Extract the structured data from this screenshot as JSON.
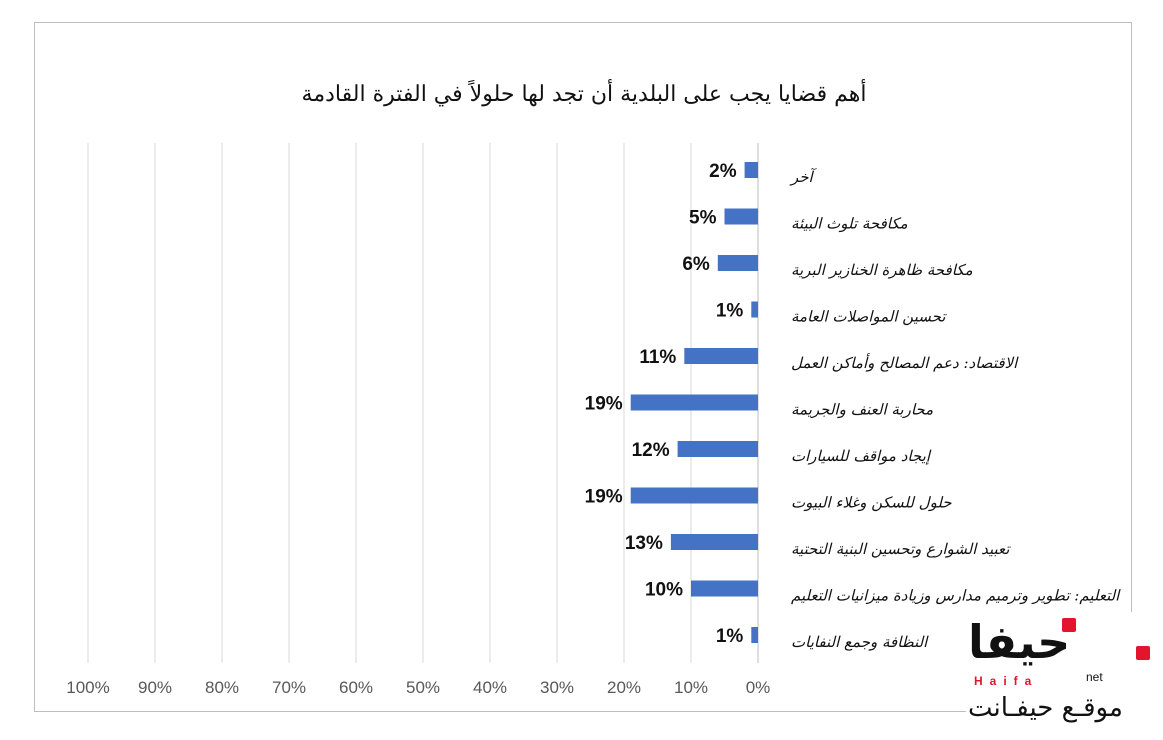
{
  "chart_data": {
    "type": "bar",
    "orientation": "horizontal",
    "title": "أهم قضايا يجب على البلدية أن تجد لها حلولاً في الفترة القادمة",
    "categories": [
      "آخر",
      "مكافحة تلوث البيئة",
      "مكافحة ظاهرة الخنازير البرية",
      "تحسين المواصلات العامة",
      "الاقتصاد: دعم المصالح وأماكن العمل",
      "محاربة العنف والجريمة",
      "إيجاد مواقف للسيارات",
      "حلول للسكن وغلاء البيوت",
      "تعبيد الشوارع وتحسين البنية التحتية",
      "التعليم: تطوير وترميم مدارس وزيادة ميزانيات التعليم",
      "النظافة وجمع النفايات"
    ],
    "values": [
      2,
      5,
      6,
      1,
      11,
      19,
      12,
      19,
      13,
      10,
      1
    ],
    "data_labels": [
      "2%",
      "5%",
      "6%",
      "1%",
      "11%",
      "19%",
      "12%",
      "19%",
      "13%",
      "10%",
      "1%"
    ],
    "xlim": [
      0,
      100
    ],
    "x_reversed": true,
    "x_ticks": [
      "100%",
      "90%",
      "80%",
      "70%",
      "60%",
      "50%",
      "40%",
      "30%",
      "20%",
      "10%",
      "0%"
    ],
    "grid": true,
    "legend": "none",
    "bar_color": "#4472c4"
  },
  "logo": {
    "arabic": "حيفا",
    "latin": "Haifa",
    "net": "net",
    "subtitle": "موقـع حيفـانت",
    "accent_color": "#e3142d"
  }
}
